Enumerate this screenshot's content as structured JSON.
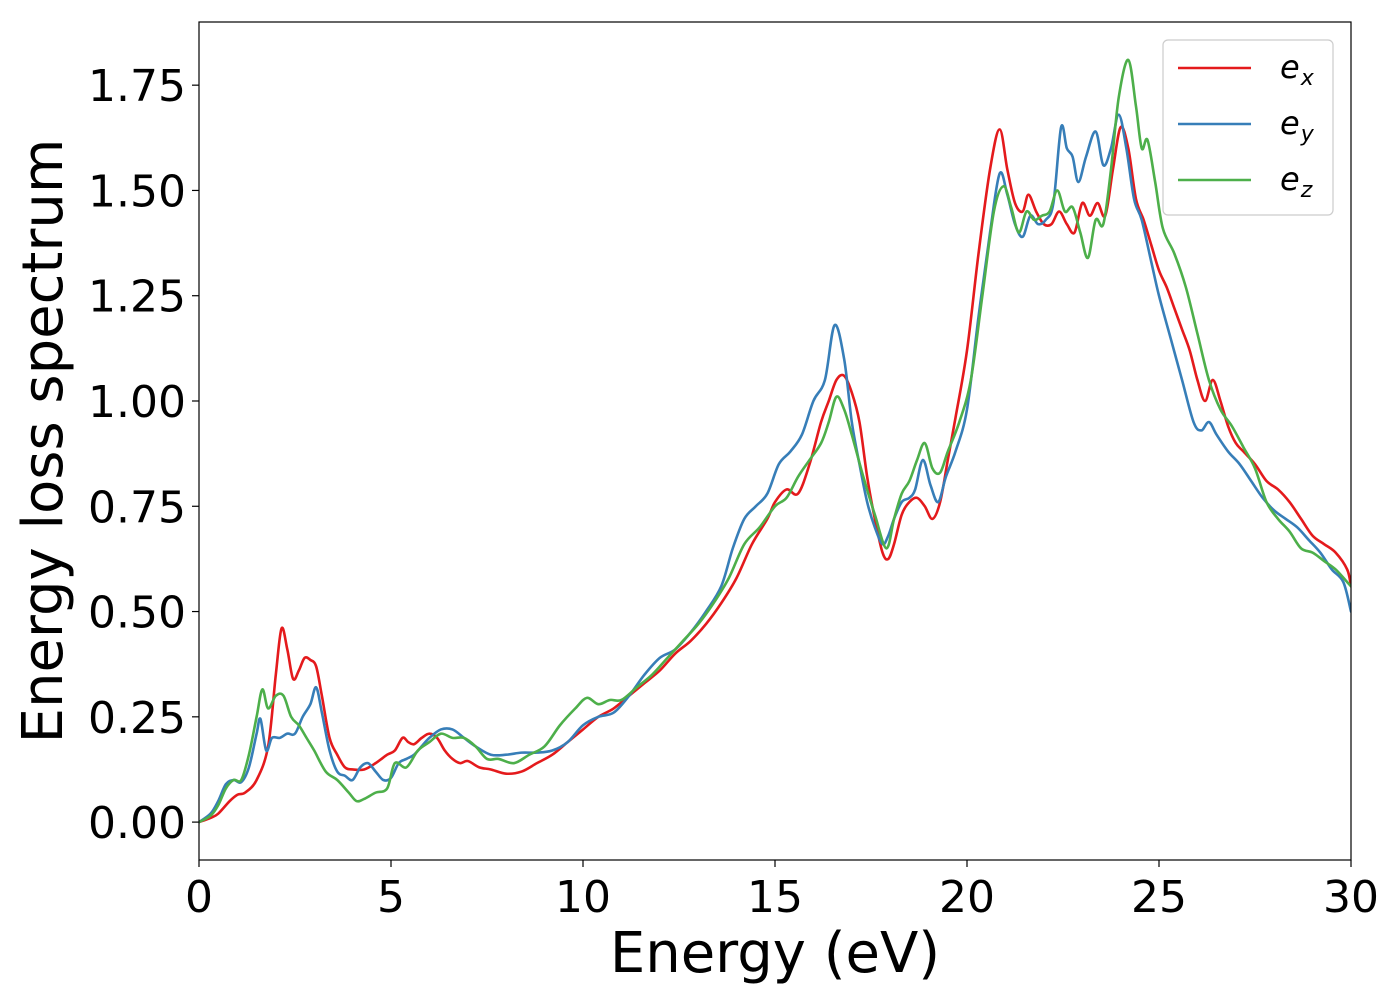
{
  "chart_data": {
    "type": "line",
    "xlabel": "Energy (eV)",
    "ylabel": "Energy loss spectrum",
    "xlim": [
      0,
      30
    ],
    "ylim": [
      -0.09,
      1.9
    ],
    "xticks": [
      0,
      5,
      10,
      15,
      20,
      25,
      30
    ],
    "xtick_labels": [
      "0",
      "5",
      "10",
      "15",
      "20",
      "25",
      "30"
    ],
    "yticks": [
      0.0,
      0.25,
      0.5,
      0.75,
      1.0,
      1.25,
      1.5,
      1.75
    ],
    "ytick_labels": [
      "0.00",
      "0.25",
      "0.50",
      "0.75",
      "1.00",
      "1.25",
      "1.50",
      "1.75"
    ],
    "grid": false,
    "legend_position": "top-right",
    "series": [
      {
        "name": "e_x",
        "legend_base": "e",
        "legend_sub": "x",
        "color": "#e41a1c",
        "x": [
          0,
          0.3,
          0.5,
          0.8,
          1.0,
          1.2,
          1.5,
          1.8,
          2.0,
          2.15,
          2.3,
          2.45,
          2.6,
          2.75,
          2.9,
          3.05,
          3.2,
          3.4,
          3.6,
          3.8,
          4.0,
          4.3,
          4.6,
          4.9,
          5.1,
          5.3,
          5.45,
          5.6,
          5.8,
          6.0,
          6.2,
          6.4,
          6.6,
          6.8,
          7.0,
          7.3,
          7.6,
          8.0,
          8.4,
          8.8,
          9.2,
          9.6,
          10.0,
          10.4,
          10.8,
          11.2,
          11.6,
          12.0,
          12.4,
          12.8,
          13.2,
          13.6,
          14.0,
          14.4,
          14.8,
          15.0,
          15.3,
          15.6,
          15.9,
          16.2,
          16.4,
          16.6,
          16.8,
          17.0,
          17.2,
          17.4,
          17.6,
          17.8,
          17.95,
          18.1,
          18.3,
          18.5,
          18.7,
          18.9,
          19.1,
          19.3,
          19.5,
          19.7,
          20.0,
          20.3,
          20.6,
          20.85,
          21.05,
          21.25,
          21.45,
          21.6,
          21.8,
          22.0,
          22.2,
          22.4,
          22.6,
          22.8,
          23.0,
          23.2,
          23.4,
          23.6,
          23.8,
          24.0,
          24.2,
          24.4,
          24.6,
          24.8,
          25.0,
          25.2,
          25.4,
          25.6,
          25.8,
          26.0,
          26.2,
          26.4,
          26.6,
          26.8,
          27.0,
          27.2,
          27.5,
          27.8,
          28.1,
          28.4,
          28.7,
          29.0,
          29.3,
          29.6,
          29.9,
          30.0
        ],
        "y": [
          0.0,
          0.01,
          0.02,
          0.05,
          0.065,
          0.07,
          0.1,
          0.18,
          0.35,
          0.46,
          0.41,
          0.34,
          0.36,
          0.39,
          0.385,
          0.37,
          0.3,
          0.2,
          0.16,
          0.13,
          0.125,
          0.125,
          0.14,
          0.16,
          0.17,
          0.2,
          0.19,
          0.185,
          0.2,
          0.21,
          0.2,
          0.17,
          0.15,
          0.14,
          0.145,
          0.13,
          0.125,
          0.115,
          0.12,
          0.14,
          0.16,
          0.19,
          0.22,
          0.25,
          0.27,
          0.3,
          0.33,
          0.36,
          0.4,
          0.43,
          0.47,
          0.52,
          0.58,
          0.66,
          0.72,
          0.76,
          0.79,
          0.78,
          0.85,
          0.95,
          1.0,
          1.05,
          1.06,
          1.02,
          0.95,
          0.82,
          0.72,
          0.64,
          0.625,
          0.66,
          0.73,
          0.76,
          0.77,
          0.75,
          0.72,
          0.76,
          0.86,
          0.96,
          1.12,
          1.35,
          1.55,
          1.645,
          1.55,
          1.47,
          1.45,
          1.49,
          1.45,
          1.42,
          1.42,
          1.45,
          1.42,
          1.4,
          1.47,
          1.44,
          1.47,
          1.44,
          1.55,
          1.65,
          1.6,
          1.48,
          1.43,
          1.37,
          1.31,
          1.27,
          1.22,
          1.17,
          1.12,
          1.05,
          1.0,
          1.05,
          1.0,
          0.94,
          0.9,
          0.88,
          0.85,
          0.81,
          0.79,
          0.76,
          0.72,
          0.68,
          0.66,
          0.64,
          0.6,
          0.56
        ]
      },
      {
        "name": "e_y",
        "legend_base": "e",
        "legend_sub": "y",
        "color": "#377eb8",
        "x": [
          0,
          0.3,
          0.5,
          0.7,
          0.9,
          1.1,
          1.3,
          1.5,
          1.6,
          1.75,
          1.9,
          2.1,
          2.3,
          2.5,
          2.7,
          2.9,
          3.05,
          3.2,
          3.4,
          3.6,
          3.8,
          4.0,
          4.2,
          4.4,
          4.6,
          4.8,
          5.0,
          5.2,
          5.4,
          5.6,
          5.8,
          6.0,
          6.3,
          6.6,
          6.9,
          7.2,
          7.6,
          8.0,
          8.4,
          8.8,
          9.2,
          9.6,
          10.0,
          10.4,
          10.8,
          11.2,
          11.6,
          12.0,
          12.4,
          12.8,
          13.2,
          13.6,
          13.9,
          14.2,
          14.5,
          14.8,
          15.1,
          15.4,
          15.7,
          16.0,
          16.3,
          16.55,
          16.8,
          17.0,
          17.2,
          17.4,
          17.6,
          17.8,
          17.95,
          18.1,
          18.3,
          18.5,
          18.65,
          18.85,
          19.05,
          19.25,
          19.45,
          19.7,
          20.0,
          20.3,
          20.6,
          20.85,
          21.05,
          21.25,
          21.45,
          21.65,
          21.85,
          22.05,
          22.25,
          22.45,
          22.6,
          22.75,
          22.9,
          23.1,
          23.35,
          23.55,
          23.75,
          23.95,
          24.15,
          24.35,
          24.55,
          24.8,
          25.0,
          25.3,
          25.6,
          25.9,
          26.1,
          26.3,
          26.5,
          26.8,
          27.1,
          27.4,
          27.7,
          28.0,
          28.3,
          28.6,
          28.9,
          29.2,
          29.5,
          29.8,
          30.0
        ],
        "y": [
          0.0,
          0.02,
          0.05,
          0.09,
          0.1,
          0.095,
          0.13,
          0.21,
          0.245,
          0.17,
          0.2,
          0.2,
          0.21,
          0.21,
          0.25,
          0.28,
          0.32,
          0.26,
          0.17,
          0.12,
          0.11,
          0.1,
          0.13,
          0.14,
          0.12,
          0.1,
          0.105,
          0.14,
          0.15,
          0.16,
          0.18,
          0.2,
          0.22,
          0.22,
          0.2,
          0.18,
          0.16,
          0.16,
          0.165,
          0.165,
          0.17,
          0.19,
          0.23,
          0.25,
          0.26,
          0.3,
          0.35,
          0.39,
          0.41,
          0.45,
          0.5,
          0.56,
          0.65,
          0.72,
          0.75,
          0.78,
          0.85,
          0.88,
          0.92,
          1.0,
          1.05,
          1.18,
          1.1,
          0.95,
          0.85,
          0.76,
          0.7,
          0.66,
          0.68,
          0.72,
          0.76,
          0.77,
          0.79,
          0.86,
          0.8,
          0.76,
          0.82,
          0.88,
          0.98,
          1.2,
          1.4,
          1.54,
          1.49,
          1.42,
          1.39,
          1.44,
          1.42,
          1.43,
          1.47,
          1.65,
          1.6,
          1.58,
          1.52,
          1.58,
          1.64,
          1.56,
          1.6,
          1.68,
          1.6,
          1.48,
          1.43,
          1.33,
          1.25,
          1.15,
          1.05,
          0.95,
          0.93,
          0.95,
          0.92,
          0.88,
          0.85,
          0.81,
          0.77,
          0.74,
          0.72,
          0.7,
          0.67,
          0.64,
          0.6,
          0.57,
          0.5
        ]
      },
      {
        "name": "e_z",
        "legend_base": "e",
        "legend_sub": "z",
        "color": "#4daf4a",
        "x": [
          0,
          0.3,
          0.5,
          0.7,
          0.9,
          1.1,
          1.3,
          1.5,
          1.65,
          1.8,
          2.0,
          2.2,
          2.4,
          2.6,
          2.8,
          3.0,
          3.3,
          3.6,
          3.9,
          4.1,
          4.3,
          4.6,
          4.9,
          5.1,
          5.4,
          5.7,
          6.0,
          6.3,
          6.6,
          6.9,
          7.2,
          7.5,
          7.8,
          8.2,
          8.6,
          9.0,
          9.4,
          9.8,
          10.1,
          10.4,
          10.7,
          11.0,
          11.4,
          11.8,
          12.2,
          12.6,
          13.0,
          13.4,
          13.8,
          14.2,
          14.6,
          15.0,
          15.3,
          15.6,
          15.9,
          16.2,
          16.4,
          16.6,
          16.8,
          17.0,
          17.3,
          17.6,
          17.9,
          18.1,
          18.3,
          18.5,
          18.7,
          18.9,
          19.1,
          19.3,
          19.5,
          19.8,
          20.1,
          20.4,
          20.7,
          20.95,
          21.15,
          21.35,
          21.55,
          21.75,
          21.95,
          22.15,
          22.35,
          22.55,
          22.75,
          22.95,
          23.15,
          23.35,
          23.55,
          23.75,
          23.95,
          24.2,
          24.4,
          24.55,
          24.7,
          24.9,
          25.1,
          25.4,
          25.7,
          26.0,
          26.3,
          26.6,
          26.9,
          27.2,
          27.5,
          27.8,
          28.1,
          28.4,
          28.7,
          29.0,
          29.3,
          29.6,
          29.9,
          30.0
        ],
        "y": [
          0.0,
          0.015,
          0.04,
          0.08,
          0.1,
          0.1,
          0.16,
          0.25,
          0.315,
          0.27,
          0.3,
          0.3,
          0.25,
          0.23,
          0.2,
          0.17,
          0.12,
          0.1,
          0.07,
          0.05,
          0.055,
          0.07,
          0.08,
          0.14,
          0.13,
          0.17,
          0.19,
          0.21,
          0.2,
          0.2,
          0.18,
          0.15,
          0.15,
          0.14,
          0.16,
          0.18,
          0.23,
          0.27,
          0.295,
          0.28,
          0.29,
          0.29,
          0.32,
          0.35,
          0.39,
          0.43,
          0.47,
          0.52,
          0.58,
          0.66,
          0.7,
          0.75,
          0.77,
          0.82,
          0.86,
          0.9,
          0.95,
          1.01,
          0.98,
          0.92,
          0.82,
          0.73,
          0.65,
          0.72,
          0.78,
          0.81,
          0.86,
          0.9,
          0.84,
          0.83,
          0.88,
          0.95,
          1.05,
          1.25,
          1.45,
          1.51,
          1.46,
          1.4,
          1.45,
          1.43,
          1.44,
          1.45,
          1.5,
          1.45,
          1.46,
          1.4,
          1.34,
          1.43,
          1.42,
          1.55,
          1.72,
          1.81,
          1.7,
          1.6,
          1.62,
          1.52,
          1.41,
          1.35,
          1.27,
          1.16,
          1.05,
          0.98,
          0.94,
          0.89,
          0.84,
          0.76,
          0.72,
          0.69,
          0.65,
          0.64,
          0.62,
          0.6,
          0.57,
          0.56
        ]
      }
    ]
  }
}
